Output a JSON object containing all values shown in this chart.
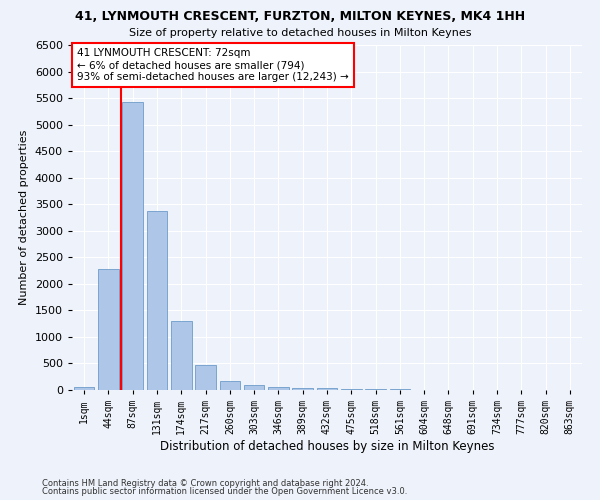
{
  "title_line1": "41, LYNMOUTH CRESCENT, FURZTON, MILTON KEYNES, MK4 1HH",
  "title_line2": "Size of property relative to detached houses in Milton Keynes",
  "xlabel": "Distribution of detached houses by size in Milton Keynes",
  "ylabel": "Number of detached properties",
  "footnote1": "Contains HM Land Registry data © Crown copyright and database right 2024.",
  "footnote2": "Contains public sector information licensed under the Open Government Licence v3.0.",
  "categories": [
    "1sqm",
    "44sqm",
    "87sqm",
    "131sqm",
    "174sqm",
    "217sqm",
    "260sqm",
    "303sqm",
    "346sqm",
    "389sqm",
    "432sqm",
    "475sqm",
    "518sqm",
    "561sqm",
    "604sqm",
    "648sqm",
    "691sqm",
    "734sqm",
    "777sqm",
    "820sqm",
    "863sqm"
  ],
  "values": [
    65,
    2280,
    5430,
    3380,
    1300,
    480,
    165,
    90,
    65,
    45,
    30,
    20,
    15,
    10,
    8,
    5,
    4,
    3,
    2,
    2,
    1
  ],
  "bar_color": "#aec6e8",
  "bar_edge_color": "#5a8fc2",
  "vline_x": 1.5,
  "vline_color": "red",
  "annotation_text": "41 LYNMOUTH CRESCENT: 72sqm\n← 6% of detached houses are smaller (794)\n93% of semi-detached houses are larger (12,243) →",
  "annotation_box_facecolor": "#ffffff",
  "annotation_box_edgecolor": "red",
  "ylim": [
    0,
    6500
  ],
  "ytick_interval": 500,
  "background_color": "#eef2fa",
  "grid_color": "#ffffff"
}
